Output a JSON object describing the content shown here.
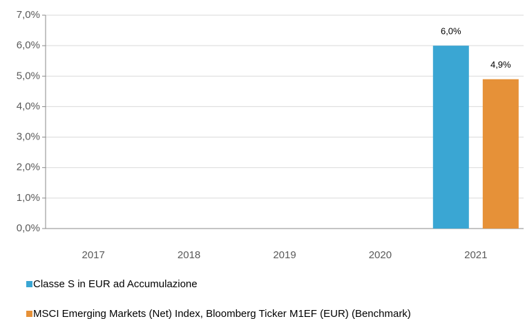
{
  "chart_data": {
    "type": "bar",
    "categories": [
      "2017",
      "2018",
      "2019",
      "2020",
      "2021"
    ],
    "series": [
      {
        "name": "Classe S in EUR ad Accumulazione",
        "color": "#3aa6d3",
        "values": [
          null,
          null,
          null,
          null,
          6.0
        ],
        "value_labels": [
          null,
          null,
          null,
          null,
          "6,0%"
        ]
      },
      {
        "name": "MSCI Emerging Markets (Net) Index, Bloomberg Ticker M1EF (EUR) (Benchmark)",
        "color": "#e69138",
        "values": [
          null,
          null,
          null,
          null,
          4.9
        ],
        "value_labels": [
          null,
          null,
          null,
          null,
          "4,9%"
        ]
      }
    ],
    "ylim": [
      0,
      7
    ],
    "yticks": [
      {
        "value": 0,
        "label": "0,0%"
      },
      {
        "value": 1,
        "label": "1,0%"
      },
      {
        "value": 2,
        "label": "2,0%"
      },
      {
        "value": 3,
        "label": "3,0%"
      },
      {
        "value": 4,
        "label": "4,0%"
      },
      {
        "value": 5,
        "label": "5,0%"
      },
      {
        "value": 6,
        "label": "6,0%"
      },
      {
        "value": 7,
        "label": "7,0%"
      }
    ],
    "grid": true,
    "legend": "bottom"
  }
}
